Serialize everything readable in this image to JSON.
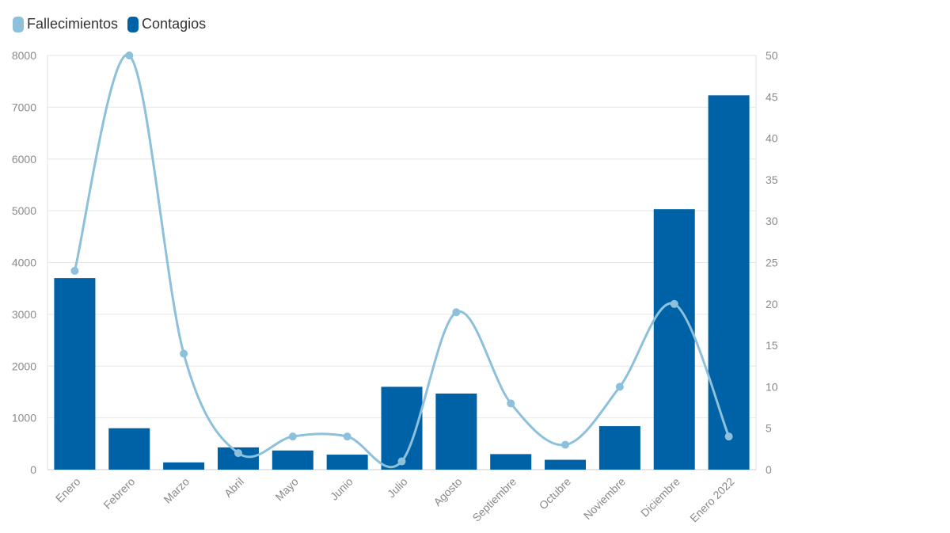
{
  "legend": {
    "fallecimientos": {
      "label": "Fallecimientos",
      "color": "#8dc0db"
    },
    "contagios": {
      "label": "Contagios",
      "color": "#0062a6"
    }
  },
  "chart_data": {
    "type": "bar",
    "categories": [
      "Enero",
      "Febrero",
      "Marzo",
      "Abril",
      "Mayo",
      "Junio",
      "Julio",
      "Agosto",
      "Septiembre",
      "Octubre",
      "Noviembre",
      "Diciembre",
      "Enero 2022"
    ],
    "series": [
      {
        "name": "Contagios",
        "type": "bar",
        "axis": "left",
        "color": "#0062a6",
        "values": [
          3700,
          800,
          140,
          430,
          370,
          290,
          1600,
          1470,
          300,
          190,
          840,
          5030,
          7230
        ]
      },
      {
        "name": "Fallecimientos",
        "type": "line",
        "axis": "right",
        "color": "#8dc0db",
        "smooth": true,
        "values": [
          24,
          50,
          14,
          2,
          4,
          4,
          1,
          19,
          8,
          3,
          10,
          20,
          4
        ]
      }
    ],
    "ylim_left": [
      0,
      8000
    ],
    "yticks_left": [
      0,
      1000,
      2000,
      3000,
      4000,
      5000,
      6000,
      7000,
      8000
    ],
    "ylim_right": [
      0,
      50
    ],
    "yticks_right": [
      0,
      5,
      10,
      15,
      20,
      25,
      30,
      35,
      40,
      45,
      50
    ],
    "grid": true,
    "legend_position": "top-left",
    "title": "",
    "xlabel": "",
    "ylabel": ""
  }
}
